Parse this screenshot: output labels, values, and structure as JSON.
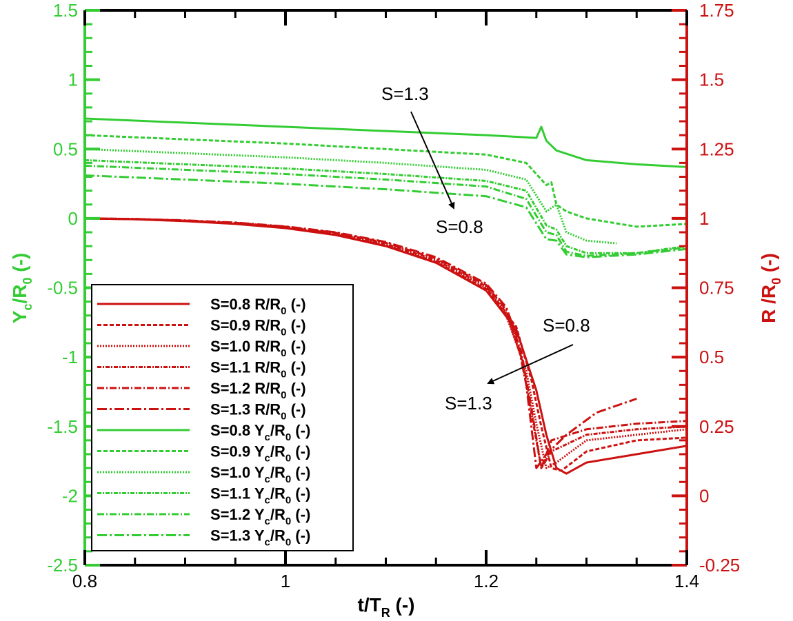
{
  "chart_data": {
    "type": "line",
    "title": "",
    "xlabel": "t/T",
    "xlabel_sub": "R",
    "xlabel_suffix": "(-)",
    "ylabel_left": "Y",
    "ylabel_left_sub1": "c",
    "ylabel_left_mid": "/R",
    "ylabel_left_sub2": "0",
    "ylabel_left_suffix": "(-)",
    "ylabel_right": "R /R",
    "ylabel_right_sub": "0",
    "ylabel_right_suffix": "(-)",
    "xlim": [
      0.8,
      1.4
    ],
    "ylim_left": [
      -2.5,
      1.5
    ],
    "ylim_right": [
      -0.25,
      1.75
    ],
    "x_ticks": [
      "0.8",
      "1",
      "1.2",
      "1.4"
    ],
    "y_left_ticks": [
      "1.5",
      "1",
      "0.5",
      "0",
      "-0.5",
      "-1",
      "-1.5",
      "-2",
      "-2.5"
    ],
    "y_right_ticks": [
      "1.75",
      "1.5",
      "1.25",
      "1",
      "0.75",
      "0.5",
      "0.25",
      "0",
      "-0.25"
    ],
    "colors": {
      "green": "#33cc33",
      "red": "#cc1111",
      "axis": "#000000"
    },
    "series_R": [
      {
        "name": "S=0.8 R/R0 (-)",
        "label": "S=0.8 R/R",
        "dash": "",
        "points": [
          [
            0.8,
            1.0
          ],
          [
            0.85,
            0.997
          ],
          [
            0.9,
            0.99
          ],
          [
            0.95,
            0.98
          ],
          [
            1.0,
            0.965
          ],
          [
            1.05,
            0.94
          ],
          [
            1.1,
            0.9
          ],
          [
            1.15,
            0.84
          ],
          [
            1.2,
            0.74
          ],
          [
            1.23,
            0.6
          ],
          [
            1.25,
            0.38
          ],
          [
            1.26,
            0.22
          ],
          [
            1.27,
            0.1
          ],
          [
            1.28,
            0.08
          ],
          [
            1.3,
            0.12
          ],
          [
            1.35,
            0.15
          ],
          [
            1.4,
            0.18
          ]
        ]
      },
      {
        "name": "S=0.9 R/R0 (-)",
        "label": "S=0.9 R/R",
        "dash": "6,3",
        "points": [
          [
            0.8,
            1.0
          ],
          [
            0.85,
            0.997
          ],
          [
            0.9,
            0.991
          ],
          [
            0.95,
            0.981
          ],
          [
            1.0,
            0.966
          ],
          [
            1.05,
            0.942
          ],
          [
            1.1,
            0.902
          ],
          [
            1.15,
            0.843
          ],
          [
            1.2,
            0.745
          ],
          [
            1.23,
            0.61
          ],
          [
            1.245,
            0.42
          ],
          [
            1.255,
            0.25
          ],
          [
            1.265,
            0.1
          ],
          [
            1.275,
            0.09
          ],
          [
            1.3,
            0.16
          ],
          [
            1.35,
            0.2
          ],
          [
            1.4,
            0.21
          ]
        ]
      },
      {
        "name": "S=1.0 R/R0 (-)",
        "label": "S=1.0 R/R",
        "dash": "2,2",
        "points": [
          [
            0.8,
            1.0
          ],
          [
            0.85,
            0.997
          ],
          [
            0.9,
            0.991
          ],
          [
            0.95,
            0.982
          ],
          [
            1.0,
            0.967
          ],
          [
            1.05,
            0.944
          ],
          [
            1.1,
            0.905
          ],
          [
            1.15,
            0.846
          ],
          [
            1.2,
            0.75
          ],
          [
            1.22,
            0.65
          ],
          [
            1.24,
            0.45
          ],
          [
            1.25,
            0.26
          ],
          [
            1.26,
            0.1
          ],
          [
            1.27,
            0.12
          ],
          [
            1.3,
            0.2
          ],
          [
            1.35,
            0.22
          ],
          [
            1.4,
            0.24
          ]
        ]
      },
      {
        "name": "S=1.1 R/R0 (-)",
        "label": "S=1.1 R/R",
        "dash": "6,2,2,2",
        "points": [
          [
            0.8,
            1.0
          ],
          [
            0.85,
            0.998
          ],
          [
            0.9,
            0.992
          ],
          [
            0.95,
            0.983
          ],
          [
            1.0,
            0.968
          ],
          [
            1.05,
            0.946
          ],
          [
            1.1,
            0.908
          ],
          [
            1.15,
            0.85
          ],
          [
            1.2,
            0.755
          ],
          [
            1.22,
            0.66
          ],
          [
            1.235,
            0.5
          ],
          [
            1.245,
            0.3
          ],
          [
            1.255,
            0.1
          ],
          [
            1.265,
            0.16
          ],
          [
            1.3,
            0.22
          ],
          [
            1.35,
            0.24
          ],
          [
            1.4,
            0.25
          ]
        ]
      },
      {
        "name": "S=1.2 R/R0 (-)",
        "label": "S=1.2 R/R",
        "dash": "10,3,2,3",
        "points": [
          [
            0.8,
            1.0
          ],
          [
            0.85,
            0.998
          ],
          [
            0.9,
            0.992
          ],
          [
            0.95,
            0.984
          ],
          [
            1.0,
            0.97
          ],
          [
            1.05,
            0.948
          ],
          [
            1.1,
            0.912
          ],
          [
            1.15,
            0.855
          ],
          [
            1.2,
            0.76
          ],
          [
            1.22,
            0.67
          ],
          [
            1.235,
            0.52
          ],
          [
            1.245,
            0.32
          ],
          [
            1.255,
            0.1
          ],
          [
            1.265,
            0.2
          ],
          [
            1.3,
            0.24
          ],
          [
            1.35,
            0.26
          ],
          [
            1.4,
            0.27
          ]
        ]
      },
      {
        "name": "S=1.3 R/R0 (-)",
        "label": "S=1.3 R/R",
        "dash": "14,4,3,4",
        "points": [
          [
            0.8,
            1.0
          ],
          [
            0.85,
            0.998
          ],
          [
            0.9,
            0.993
          ],
          [
            0.95,
            0.985
          ],
          [
            1.0,
            0.971
          ],
          [
            1.05,
            0.95
          ],
          [
            1.1,
            0.915
          ],
          [
            1.15,
            0.86
          ],
          [
            1.2,
            0.765
          ],
          [
            1.22,
            0.68
          ],
          [
            1.23,
            0.58
          ],
          [
            1.24,
            0.4
          ],
          [
            1.25,
            0.1
          ],
          [
            1.26,
            0.15
          ],
          [
            1.28,
            0.22
          ],
          [
            1.31,
            0.3
          ],
          [
            1.35,
            0.35
          ]
        ]
      }
    ],
    "series_Y": [
      {
        "name": "S=0.8 Yc/R0 (-)",
        "label": "S=0.8 Y",
        "dash": "",
        "points": [
          [
            0.8,
            0.72
          ],
          [
            0.9,
            0.69
          ],
          [
            1.0,
            0.66
          ],
          [
            1.1,
            0.63
          ],
          [
            1.2,
            0.6
          ],
          [
            1.25,
            0.58
          ],
          [
            1.255,
            0.66
          ],
          [
            1.26,
            0.56
          ],
          [
            1.27,
            0.49
          ],
          [
            1.3,
            0.42
          ],
          [
            1.35,
            0.39
          ],
          [
            1.4,
            0.37
          ]
        ]
      },
      {
        "name": "S=0.9 Yc/R0 (-)",
        "label": "S=0.9 Y",
        "dash": "6,3",
        "points": [
          [
            0.8,
            0.6
          ],
          [
            0.9,
            0.57
          ],
          [
            1.0,
            0.54
          ],
          [
            1.1,
            0.5
          ],
          [
            1.2,
            0.46
          ],
          [
            1.24,
            0.4
          ],
          [
            1.26,
            0.24
          ],
          [
            1.265,
            0.26
          ],
          [
            1.27,
            0.1
          ],
          [
            1.28,
            0.05
          ],
          [
            1.3,
            0.0
          ],
          [
            1.35,
            -0.06
          ],
          [
            1.4,
            -0.04
          ]
        ]
      },
      {
        "name": "S=1.0 Yc/R0 (-)",
        "label": "S=1.0 Y",
        "dash": "2,2",
        "points": [
          [
            0.8,
            0.5
          ],
          [
            0.9,
            0.47
          ],
          [
            1.0,
            0.44
          ],
          [
            1.1,
            0.4
          ],
          [
            1.2,
            0.35
          ],
          [
            1.24,
            0.28
          ],
          [
            1.26,
            0.05
          ],
          [
            1.27,
            0.1
          ],
          [
            1.28,
            -0.1
          ],
          [
            1.3,
            -0.16
          ],
          [
            1.33,
            -0.18
          ]
        ]
      },
      {
        "name": "S=1.1 Yc/R0 (-)",
        "label": "S=1.1 Y",
        "dash": "6,2,2,2",
        "points": [
          [
            0.8,
            0.42
          ],
          [
            0.9,
            0.39
          ],
          [
            1.0,
            0.36
          ],
          [
            1.1,
            0.32
          ],
          [
            1.2,
            0.27
          ],
          [
            1.24,
            0.2
          ],
          [
            1.26,
            -0.05
          ],
          [
            1.27,
            -0.08
          ],
          [
            1.28,
            -0.2
          ],
          [
            1.3,
            -0.25
          ],
          [
            1.35,
            -0.25
          ],
          [
            1.4,
            -0.2
          ]
        ]
      },
      {
        "name": "S=1.2 Yc/R0 (-)",
        "label": "S=1.2 Y",
        "dash": "10,3,2,3",
        "points": [
          [
            0.8,
            0.38
          ],
          [
            0.9,
            0.35
          ],
          [
            1.0,
            0.32
          ],
          [
            1.1,
            0.28
          ],
          [
            1.2,
            0.23
          ],
          [
            1.24,
            0.14
          ],
          [
            1.26,
            -0.1
          ],
          [
            1.27,
            -0.12
          ],
          [
            1.28,
            -0.24
          ],
          [
            1.3,
            -0.27
          ],
          [
            1.35,
            -0.25
          ],
          [
            1.4,
            -0.21
          ]
        ]
      },
      {
        "name": "S=1.3 Yc/R0 (-)",
        "label": "S=1.3 Y",
        "dash": "14,4,3,4",
        "points": [
          [
            0.8,
            0.31
          ],
          [
            0.9,
            0.28
          ],
          [
            1.0,
            0.25
          ],
          [
            1.1,
            0.21
          ],
          [
            1.2,
            0.16
          ],
          [
            1.24,
            0.08
          ],
          [
            1.26,
            -0.15
          ],
          [
            1.27,
            -0.16
          ],
          [
            1.28,
            -0.26
          ],
          [
            1.3,
            -0.28
          ],
          [
            1.35,
            -0.26
          ],
          [
            1.4,
            -0.22
          ]
        ]
      }
    ],
    "annotations": [
      {
        "text": "S=1.3",
        "group": "Y"
      },
      {
        "text": "S=0.8",
        "group": "Y"
      },
      {
        "text": "S=0.8",
        "group": "R"
      },
      {
        "text": "S=1.3",
        "group": "R"
      }
    ],
    "legend_placement": "lower-left",
    "legend_suffix": "(-)",
    "legend_sub_R": "0",
    "legend_sub_Y1": "c",
    "legend_sub_Y2": "0",
    "legend_mid_Y": "/R"
  }
}
